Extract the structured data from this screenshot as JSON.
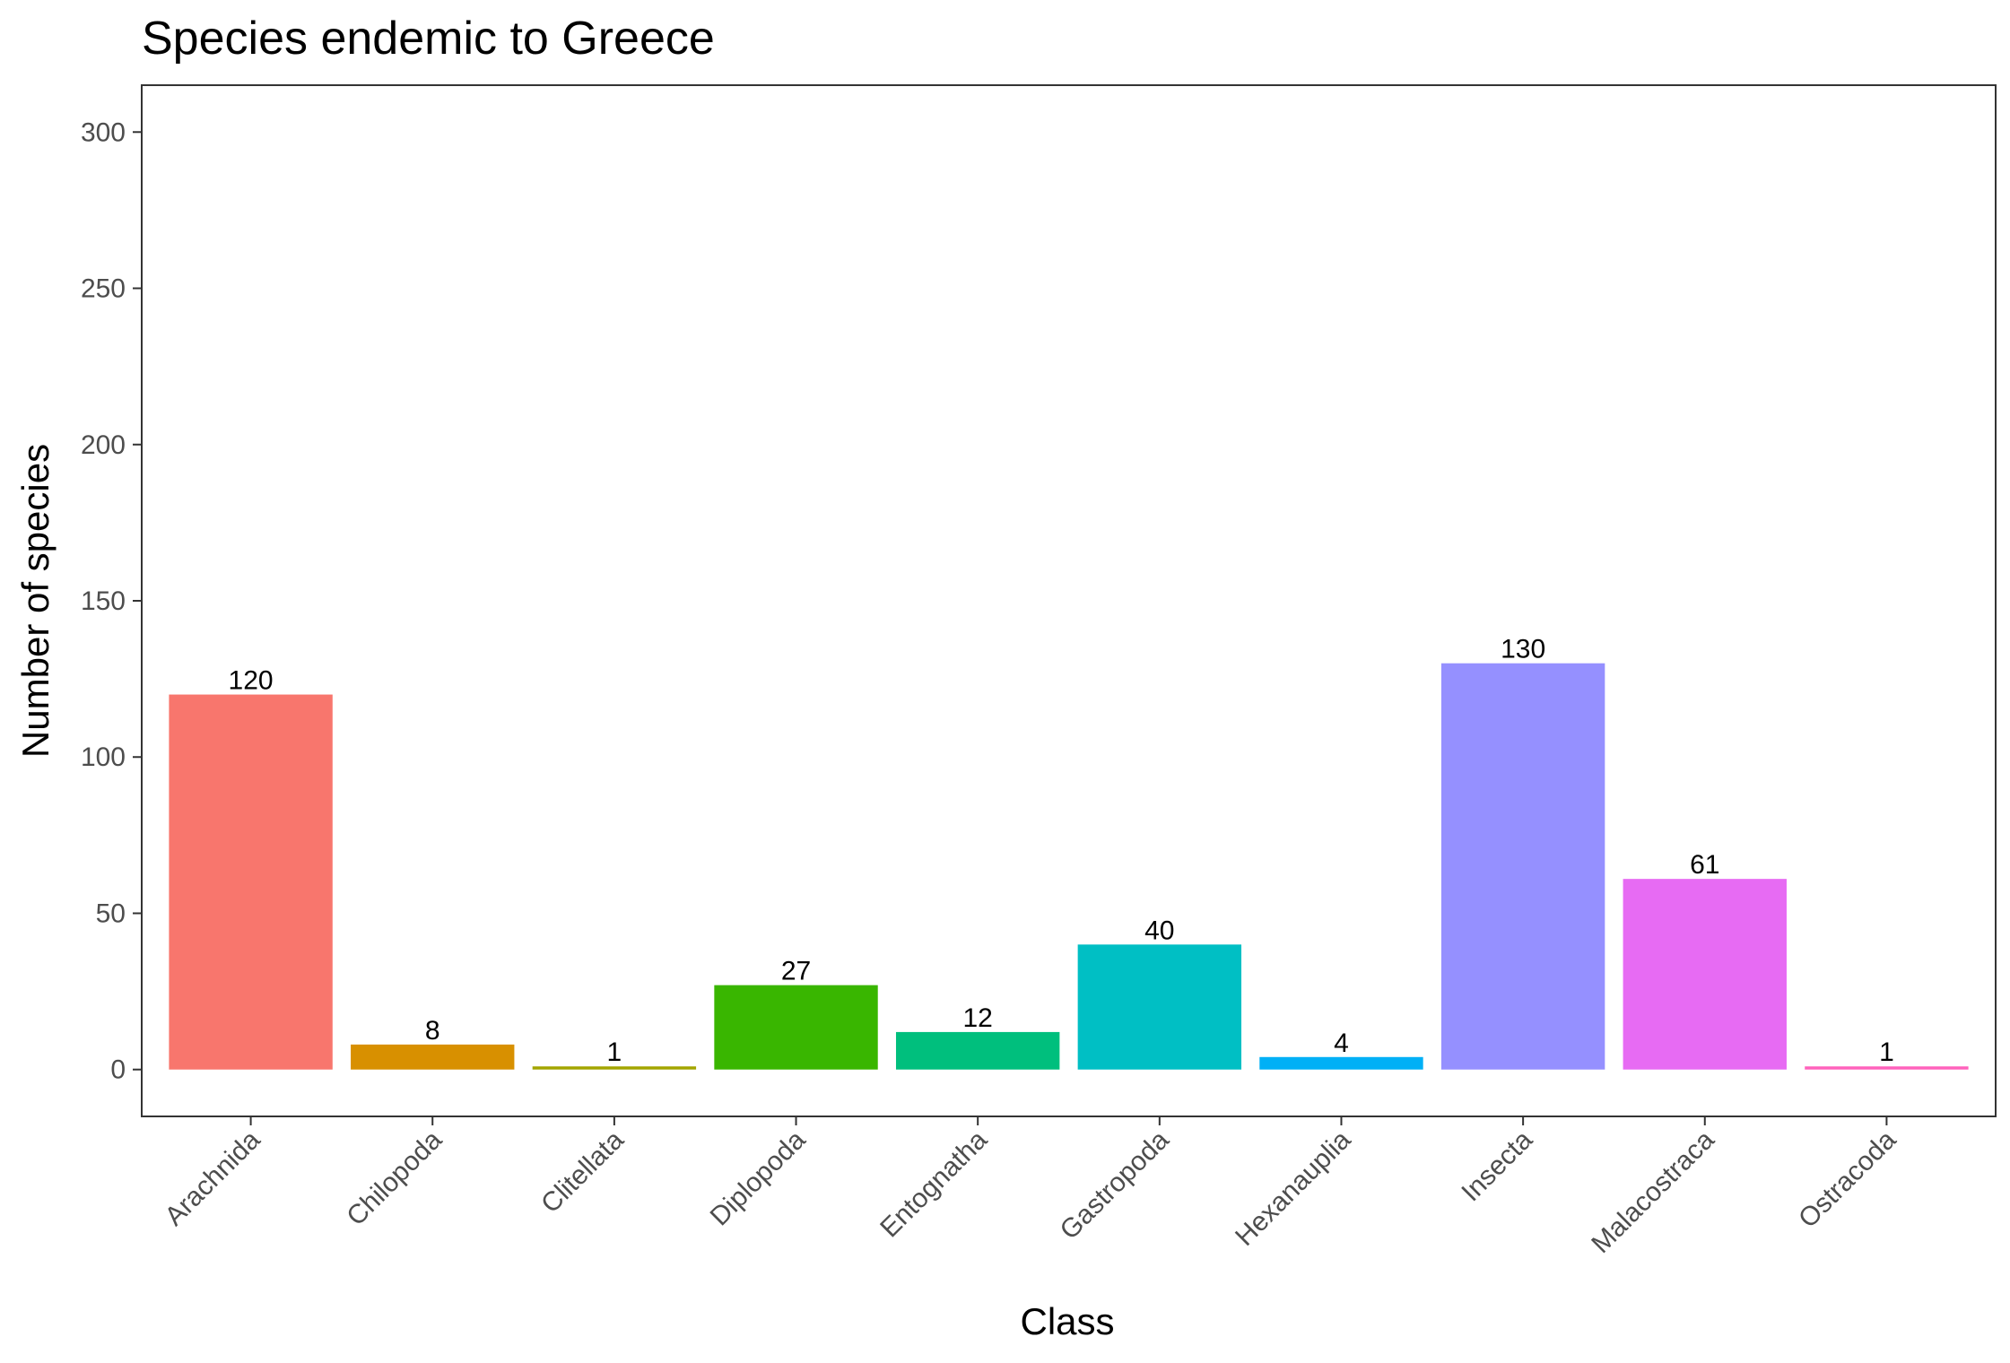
{
  "chart_data": {
    "type": "bar",
    "title": "Species endemic to Greece",
    "xlabel": "Class",
    "ylabel": "Number of species",
    "categories": [
      "Arachnida",
      "Chilopoda",
      "Clitellata",
      "Diplopoda",
      "Entognatha",
      "Gastropoda",
      "Hexanauplia",
      "Insecta",
      "Malacostraca",
      "Ostracoda"
    ],
    "values": [
      120,
      8,
      1,
      27,
      12,
      40,
      4,
      130,
      61,
      1
    ],
    "colors": [
      "#F8766D",
      "#D89000",
      "#A3A500",
      "#39B600",
      "#00BF7D",
      "#00BFC4",
      "#00B0F6",
      "#9590FF",
      "#E76BF3",
      "#FF62BC"
    ],
    "yticks": [
      0,
      50,
      100,
      150,
      200,
      250,
      300
    ],
    "ylim": [
      -15,
      315
    ],
    "grid": false,
    "legend": "none"
  }
}
